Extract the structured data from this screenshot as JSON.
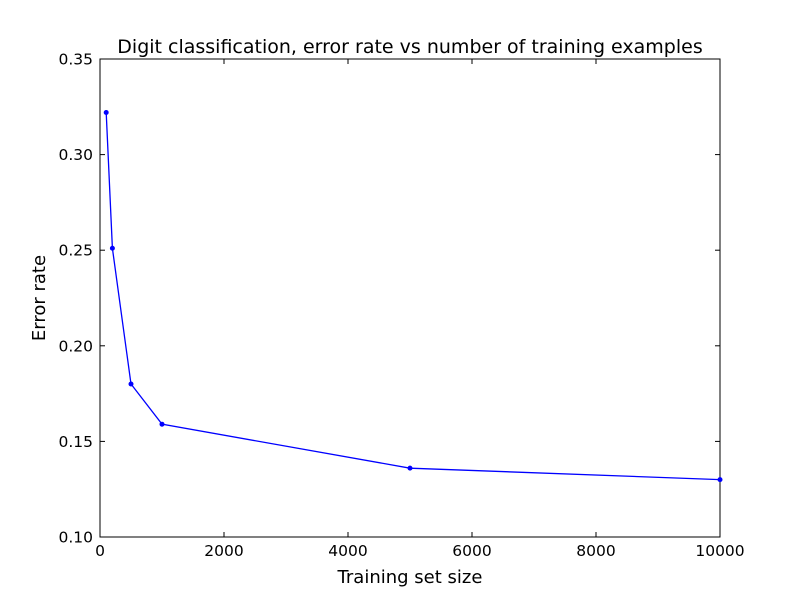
{
  "chart_data": {
    "type": "line",
    "title": "Digit classification, error rate vs number of training examples",
    "xlabel": "Training set size",
    "ylabel": "Error rate",
    "xlim": [
      0,
      10000
    ],
    "ylim": [
      0.1,
      0.35
    ],
    "xticks": [
      0,
      2000,
      4000,
      6000,
      8000,
      10000
    ],
    "xtick_labels": [
      "0",
      "2000",
      "4000",
      "6000",
      "8000",
      "10000"
    ],
    "yticks": [
      0.1,
      0.15,
      0.2,
      0.25,
      0.3,
      0.35
    ],
    "ytick_labels": [
      "0.10",
      "0.15",
      "0.20",
      "0.25",
      "0.30",
      "0.35"
    ],
    "grid": false,
    "series": [
      {
        "color": "#0000ff",
        "x": [
          100,
          200,
          500,
          1000,
          5000,
          10000
        ],
        "y": [
          0.322,
          0.251,
          0.18,
          0.159,
          0.136,
          0.13
        ]
      }
    ]
  }
}
